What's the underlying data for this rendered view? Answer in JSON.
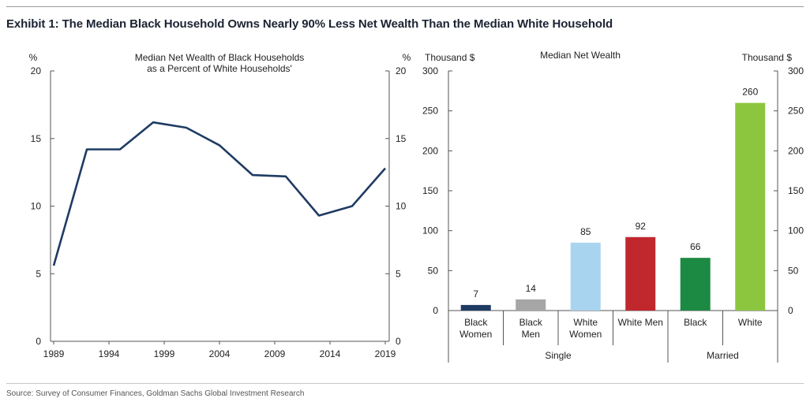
{
  "exhibit_title": "Exhibit 1: The Median Black Household Owns Nearly 90% Less Net Wealth Than the Median White Household",
  "source": "Source: Survey of Consumer Finances, Goldman Sachs Global Investment Research",
  "colors": {
    "line": "#1f3b63",
    "axis": "#555555",
    "black_women": "#1f3b63",
    "black_men": "#a6a6a6",
    "white_women": "#a9d4f0",
    "white_men": "#c0282d",
    "married_black": "#1d8a44",
    "married_white": "#8cc63f"
  },
  "chart_data": [
    {
      "type": "line",
      "title": "Median Net Wealth of Black Households",
      "subtitle": "as a Percent of White Households'",
      "ylabel_left": "%",
      "ylabel_right": "%",
      "ylim": [
        0,
        20
      ],
      "yticks": [
        "0",
        "5",
        "10",
        "15",
        "20"
      ],
      "xticks": [
        "1989",
        "1994",
        "1999",
        "2004",
        "2009",
        "2014",
        "2019"
      ],
      "xlim": [
        1989,
        2019
      ],
      "series": [
        {
          "x": [
            1989,
            1992,
            1995,
            1998,
            2001,
            2004,
            2007,
            2010,
            2013,
            2016,
            2019
          ],
          "values": [
            5.6,
            14.2,
            14.2,
            16.2,
            15.8,
            14.5,
            12.3,
            12.2,
            9.3,
            10.0,
            12.8
          ]
        }
      ]
    },
    {
      "type": "bar",
      "title": "Median Net Wealth",
      "ylabel_left": "Thousand $",
      "ylabel_right": "Thousand $",
      "ylim": [
        0,
        300
      ],
      "yticks": [
        "0",
        "50",
        "100",
        "150",
        "200",
        "250",
        "300"
      ],
      "categories": [
        {
          "line1": "Black",
          "line2": "Women",
          "color_key": "black_women"
        },
        {
          "line1": "Black",
          "line2": "Men",
          "color_key": "black_men"
        },
        {
          "line1": "White",
          "line2": "Women",
          "color_key": "white_women"
        },
        {
          "line1": "White Men",
          "line2": "",
          "color_key": "white_men"
        },
        {
          "line1": "Black",
          "line2": "",
          "color_key": "married_black"
        },
        {
          "line1": "White",
          "line2": "",
          "color_key": "married_white"
        }
      ],
      "values": [
        7,
        14,
        85,
        92,
        66,
        260
      ],
      "value_labels": [
        "7",
        "14",
        "85",
        "92",
        "66",
        "260"
      ],
      "groups": [
        {
          "label": "Single",
          "span": [
            0,
            3
          ]
        },
        {
          "label": "Married",
          "span": [
            4,
            5
          ]
        }
      ]
    }
  ]
}
